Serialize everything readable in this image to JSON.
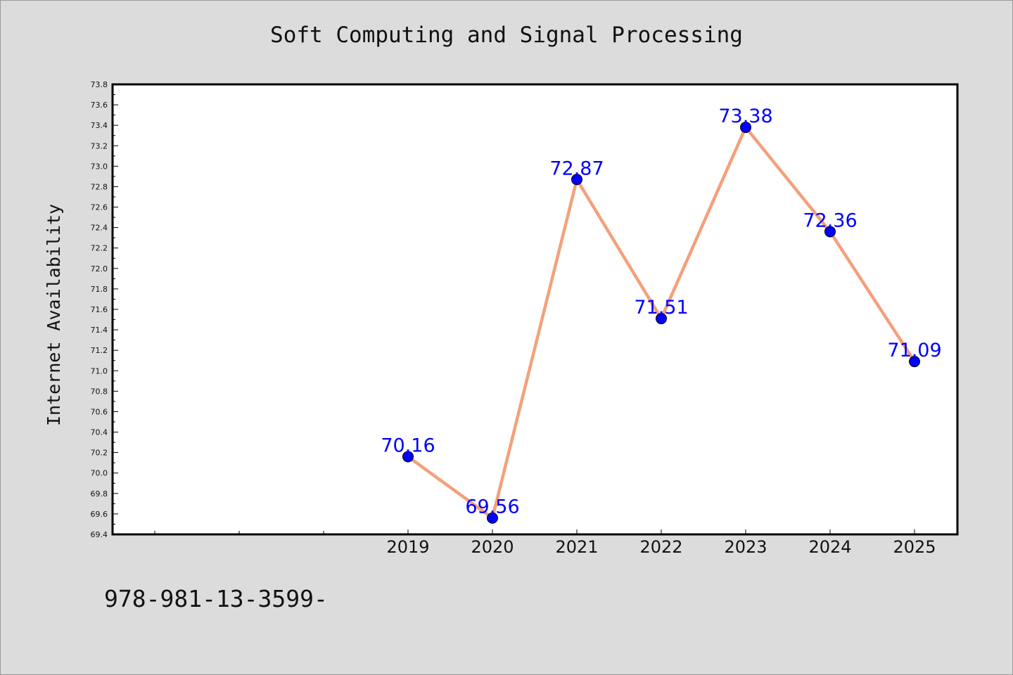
{
  "page": {
    "background": "#dcdcdc",
    "footer_text": "978-981-13-3599-"
  },
  "chart_data": {
    "type": "line",
    "title": "Soft Computing and Signal Processing",
    "xlabel": "",
    "ylabel": "Internet Availability",
    "categories": [
      "2019",
      "2020",
      "2021",
      "2022",
      "2023",
      "2024",
      "2025"
    ],
    "x_slots_before_first": 3,
    "values": [
      70.16,
      69.56,
      72.87,
      71.51,
      73.38,
      72.36,
      71.09
    ],
    "data_labels": [
      "70.16",
      "69.56",
      "72.87",
      "71.51",
      "73.38",
      "72.36",
      "71.09"
    ],
    "ylim": [
      69.4,
      73.8
    ],
    "yticks": [
      "69.4",
      "69.6",
      "69.8",
      "70.0",
      "70.2",
      "70.4",
      "70.6",
      "70.8",
      "71.0",
      "71.2",
      "71.4",
      "71.6",
      "71.8",
      "72.0",
      "72.2",
      "72.4",
      "72.6",
      "72.8",
      "73.0",
      "73.2",
      "73.4",
      "73.6",
      "73.8"
    ],
    "line_color": "#f4a07c",
    "marker_color": "#0000ff",
    "label_color": "#0000ff",
    "grid": false,
    "legend": "none"
  }
}
